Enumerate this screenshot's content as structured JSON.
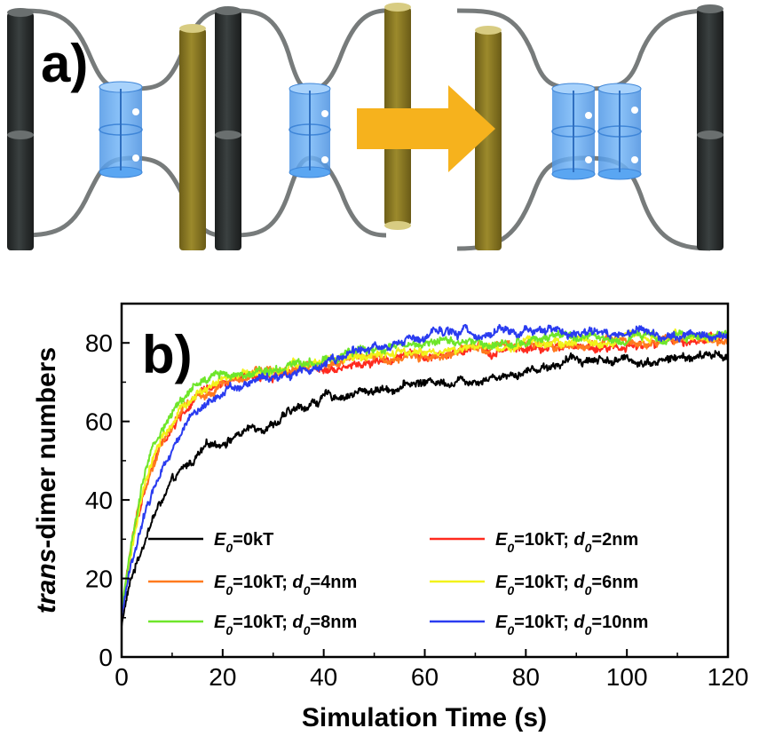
{
  "panel_a": {
    "label": "a)",
    "colors": {
      "dark_rod": "#2e3333",
      "olive_rod": "#8c7a22",
      "membrane": "#777b7b",
      "blue_cylinder": "#5aa6f2",
      "arrow": "#f6b21d"
    },
    "icons": [
      "dark-rod",
      "olive-rod",
      "blue-cylinder-dimer",
      "transition-arrow",
      "membrane-line"
    ]
  },
  "chart_data": {
    "type": "line",
    "panel_label": "b)",
    "xlabel": "Simulation Time (s)",
    "ylabel_italic": "trans",
    "ylabel_rest": "-dimer numbers",
    "xlim": [
      0,
      120
    ],
    "ylim": [
      0,
      90
    ],
    "xticks": [
      0,
      20,
      40,
      60,
      80,
      100,
      120
    ],
    "yticks": [
      0,
      20,
      40,
      60,
      80
    ],
    "grid": false,
    "legend_position": "bottom-center",
    "series": [
      {
        "name": "E0=0kT",
        "legend": {
          "E": "E",
          "Esub": "0",
          "Etext": "=0kT",
          "d": "",
          "dsub": "",
          "dtext": ""
        },
        "color": "#000000",
        "x": [
          0,
          1,
          2,
          4,
          6,
          8,
          10,
          12,
          15,
          18,
          20,
          25,
          30,
          35,
          40,
          45,
          50,
          55,
          60,
          65,
          70,
          75,
          80,
          85,
          90,
          95,
          100,
          105,
          110,
          115,
          120
        ],
        "y": [
          8,
          15,
          20,
          28,
          35,
          40,
          44,
          47,
          51,
          54,
          55,
          58,
          60,
          63,
          66,
          67,
          68,
          69,
          70,
          70.5,
          71,
          72,
          73,
          74.5,
          76,
          76,
          75.5,
          75.5,
          76,
          76.5,
          77
        ]
      },
      {
        "name": "E0=10kT; d0=2nm",
        "legend": {
          "E": "E",
          "Esub": "0",
          "Etext": "=10kT; ",
          "d": "d",
          "dsub": "0",
          "dtext": "=2nm"
        },
        "color": "#ff2a1e",
        "x": [
          0,
          1,
          2,
          4,
          6,
          8,
          10,
          12,
          15,
          18,
          20,
          25,
          30,
          35,
          40,
          45,
          50,
          55,
          60,
          65,
          70,
          75,
          80,
          85,
          90,
          95,
          100,
          105,
          110,
          115,
          120
        ],
        "y": [
          10,
          20,
          28,
          40,
          48,
          54,
          58,
          62,
          66,
          68,
          69,
          71,
          72,
          73.5,
          74,
          74.5,
          75,
          76,
          76.5,
          77,
          77.5,
          78,
          78,
          78.5,
          79,
          79,
          79.5,
          80,
          80,
          80.5,
          81
        ]
      },
      {
        "name": "E0=10kT; d0=4nm",
        "legend": {
          "E": "E",
          "Esub": "0",
          "Etext": "=10kT; ",
          "d": "d",
          "dsub": "0",
          "dtext": "=4nm"
        },
        "color": "#ff7a1e",
        "x": [
          0,
          1,
          2,
          4,
          6,
          8,
          10,
          12,
          15,
          18,
          20,
          25,
          30,
          35,
          40,
          45,
          50,
          55,
          60,
          65,
          70,
          75,
          80,
          85,
          90,
          95,
          100,
          105,
          110,
          115,
          120
        ],
        "y": [
          10,
          20,
          28,
          41,
          49,
          55,
          59,
          63,
          66,
          68,
          70,
          71.5,
          73,
          74,
          75,
          75.5,
          76,
          76.5,
          77,
          77.5,
          78,
          78.5,
          79,
          79,
          79.5,
          80,
          80,
          80.5,
          81,
          81,
          81.5
        ]
      },
      {
        "name": "E0=10kT; d0=6nm",
        "legend": {
          "E": "E",
          "Esub": "0",
          "Etext": "=10kT; ",
          "d": "d",
          "dsub": "0",
          "dtext": "=6nm"
        },
        "color": "#f2f21a",
        "x": [
          0,
          1,
          2,
          4,
          6,
          8,
          10,
          12,
          15,
          18,
          20,
          25,
          30,
          35,
          40,
          45,
          50,
          55,
          60,
          65,
          70,
          75,
          80,
          85,
          90,
          95,
          100,
          105,
          110,
          115,
          120
        ],
        "y": [
          10,
          19,
          27,
          40,
          49,
          55,
          59,
          63,
          67,
          69,
          70,
          72,
          73,
          74,
          75,
          76,
          76.5,
          77,
          77.5,
          78,
          78.5,
          79,
          79.5,
          80,
          80,
          80.5,
          81,
          81,
          81.5,
          81.5,
          82
        ]
      },
      {
        "name": "E0=10kT; d0=8nm",
        "legend": {
          "E": "E",
          "Esub": "0",
          "Etext": "=10kT; ",
          "d": "d",
          "dsub": "0",
          "dtext": "=8nm"
        },
        "color": "#6ee62a",
        "x": [
          0,
          1,
          2,
          4,
          6,
          8,
          10,
          12,
          15,
          18,
          20,
          25,
          30,
          35,
          40,
          45,
          50,
          55,
          60,
          65,
          70,
          75,
          80,
          85,
          90,
          95,
          100,
          105,
          110,
          115,
          120
        ],
        "y": [
          11,
          21,
          30,
          43,
          52,
          58,
          62,
          66,
          69,
          71,
          72,
          73,
          74,
          75,
          76.5,
          77,
          78,
          79,
          80,
          80.5,
          80.5,
          80,
          80.5,
          81,
          81,
          81,
          81.5,
          81.5,
          81.5,
          82,
          82
        ]
      },
      {
        "name": "E0=10kT; d0=10nm",
        "legend": {
          "E": "E",
          "Esub": "0",
          "Etext": "=10kT; ",
          "d": "d",
          "dsub": "0",
          "dtext": "=10nm"
        },
        "color": "#2a3cf0",
        "x": [
          0,
          1,
          2,
          4,
          6,
          8,
          10,
          12,
          15,
          18,
          20,
          25,
          30,
          35,
          40,
          45,
          50,
          55,
          60,
          65,
          70,
          75,
          80,
          85,
          90,
          95,
          100,
          105,
          110,
          115,
          120
        ],
        "y": [
          10,
          17,
          24,
          34,
          42,
          48,
          53,
          58,
          63,
          66,
          68,
          70,
          71,
          73,
          75,
          77,
          78.5,
          79.5,
          81,
          82,
          82.5,
          83,
          83,
          83,
          82.5,
          82.5,
          83,
          82.5,
          82,
          82,
          82
        ]
      }
    ]
  }
}
